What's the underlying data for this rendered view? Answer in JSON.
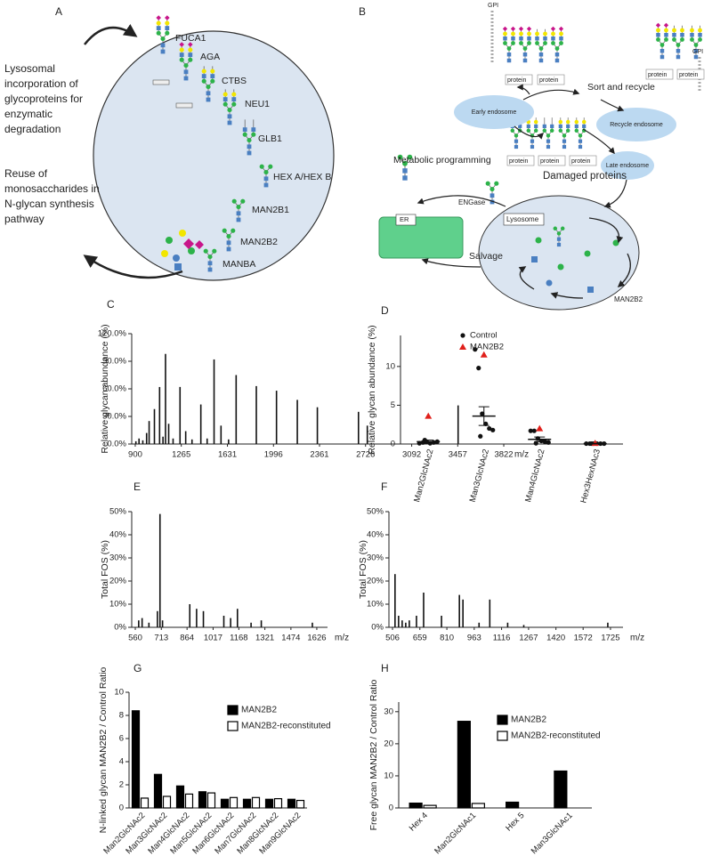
{
  "panel_a": {
    "label": "A",
    "caption": [
      "Lysosomal",
      "incorporation of",
      "glycoproteins for",
      "enzymatic",
      "degradation"
    ],
    "enzymes": [
      "FUCA1",
      "AGA",
      "CTBS",
      "NEU1",
      "GLB1",
      "HEX A/HEX B",
      "MAN2B1",
      "MAN2B2",
      "MANBA"
    ],
    "reuse": [
      "Reuse of",
      "monosaccharides in",
      "N-glycan synthesis",
      "pathway"
    ]
  },
  "panel_b": {
    "label": "B",
    "gpi": [
      "GPI",
      "GPI"
    ],
    "protein": [
      "protein",
      "protein",
      "protein",
      "protein",
      "protein",
      "protein",
      "protein"
    ],
    "sort": "Sort and recycle",
    "early": "Early endosome",
    "recycle": "Recycle endosome",
    "late": "Late endosome",
    "damaged": "Damaged proteins",
    "metabolic": "Metabolic programming",
    "engase": "ENGase",
    "er": "ER",
    "lysosome": "Lysosome",
    "salvage": "Salvage",
    "enzyme": "MAN2B2"
  },
  "chart_data": [
    {
      "type": "stem",
      "title": "C",
      "y_label": "Relative glycan abundance (%)",
      "x_label": "m/z",
      "color": "#111111",
      "x": [
        905,
        930,
        960,
        990,
        1010,
        1052,
        1093,
        1120,
        1140,
        1165,
        1200,
        1255,
        1300,
        1350,
        1420,
        1470,
        1525,
        1580,
        1640,
        1700,
        1860,
        2020,
        2185,
        2344,
        2670,
        2740,
        3460
      ],
      "values": [
        3,
        6,
        4,
        12,
        25,
        38,
        62,
        8,
        98,
        22,
        6,
        62,
        14,
        5,
        43,
        6,
        92,
        20,
        5,
        75,
        63,
        58,
        48,
        40,
        35,
        20,
        42
      ],
      "xlim": [
        872,
        3850
      ],
      "xticks": [
        900,
        1265,
        1631,
        1996,
        2361,
        2726,
        3092,
        3457,
        3822
      ],
      "ylim": [
        0,
        120
      ],
      "yticks": [
        {
          "value": 0,
          "label": "0.0%"
        },
        {
          "value": 30,
          "label": "30.0%"
        },
        {
          "value": 60,
          "label": "60.0%"
        },
        {
          "value": 90,
          "label": "90.0%"
        },
        {
          "value": 120,
          "label": "120.0%"
        }
      ]
    },
    {
      "type": "strip",
      "title": "D",
      "y_label": "Relative glycan abundance (%)",
      "categories": [
        "Man2GlcNAc2",
        "Man3GlcNAc2",
        "Man4GlcNAc2",
        "Hex3HexNAc3"
      ],
      "series": [
        {
          "name": "Control",
          "color": "#111111",
          "marker": "circle",
          "values": [
            [
              0.1,
              0.2,
              0.3,
              0.1,
              0.2,
              0.3,
              0.5
            ],
            [
              12.2,
              9.8,
              3.9,
              2.6,
              2.0,
              1.8,
              1.0
            ],
            [
              1.7,
              1.7,
              0.7,
              0.4,
              0.3,
              0.2,
              0.1
            ],
            [
              0.05,
              0.05,
              0.05,
              0.05,
              0.05,
              0.05,
              0.05
            ]
          ]
        },
        {
          "name": "MAN2B2",
          "color": "#e0201b",
          "marker": "triangle",
          "values": [
            [
              3.6
            ],
            [
              11.5
            ],
            [
              2.0
            ],
            [
              0.1
            ]
          ]
        }
      ],
      "mean": [
        0.3,
        3.6,
        0.6,
        0.05
      ],
      "error": [
        0.2,
        1.2,
        0.3,
        0.02
      ],
      "ylim": [
        0,
        14
      ],
      "yticks": [
        0,
        5,
        10
      ]
    },
    {
      "type": "stem",
      "title": "E",
      "y_label": "Total FOS (%)",
      "x_label": "m/z",
      "color": "#111111",
      "x": [
        580,
        600,
        640,
        690,
        705,
        720,
        880,
        920,
        960,
        1080,
        1120,
        1160,
        1240,
        1300,
        1600
      ],
      "values": [
        3,
        4,
        2,
        7,
        49,
        3,
        10,
        8,
        7,
        5,
        4,
        8,
        2,
        3,
        2
      ],
      "xlim": [
        539,
        1689
      ],
      "xticks": [
        560,
        713,
        864,
        1017,
        1168,
        1321,
        1474,
        1626
      ],
      "ylim": [
        0,
        50
      ],
      "yticks": [
        {
          "value": 0,
          "label": "0%"
        },
        {
          "value": 10,
          "label": "10%"
        },
        {
          "value": 20,
          "label": "20%"
        },
        {
          "value": 30,
          "label": "30%"
        },
        {
          "value": 40,
          "label": "40%"
        },
        {
          "value": 50,
          "label": "50%"
        }
      ]
    },
    {
      "type": "stem",
      "title": "F",
      "y_label": "Total FOS (%)",
      "x_label": "m/z",
      "color": "#111111",
      "x": [
        520,
        540,
        560,
        580,
        600,
        640,
        680,
        780,
        880,
        900,
        990,
        1050,
        1150,
        1240,
        1710
      ],
      "values": [
        23,
        5,
        3,
        2,
        3,
        5,
        15,
        5,
        14,
        12,
        2,
        12,
        2,
        1,
        2
      ],
      "xlim": [
        486,
        1795
      ],
      "xticks": [
        506,
        659,
        810,
        963,
        1116,
        1267,
        1420,
        1572,
        1725
      ],
      "ylim": [
        0,
        50
      ],
      "yticks": [
        {
          "value": 0,
          "label": "0%"
        },
        {
          "value": 10,
          "label": "10%"
        },
        {
          "value": 20,
          "label": "20%"
        },
        {
          "value": 30,
          "label": "30%"
        },
        {
          "value": 40,
          "label": "40%"
        },
        {
          "value": 50,
          "label": "50%"
        }
      ]
    },
    {
      "type": "bar",
      "title": "G",
      "y_label": "N-linked glycan MAN2B2 / Control Ratio",
      "categories": [
        "Man2GlcNAc2",
        "Man3GlcNAc2",
        "Man4GlcNAc2",
        "Man5GlcNAc2",
        "Man6GlcNAc2",
        "Man7GlcNAc2",
        "Man8GlcNAc2",
        "Man9GlcNAc2"
      ],
      "series": [
        {
          "name": "MAN2B2",
          "color": "#000000",
          "values": [
            8.4,
            2.9,
            1.9,
            1.4,
            0.75,
            0.75,
            0.75,
            0.75
          ]
        },
        {
          "name": "MAN2B2-reconstituted",
          "color": "#ffffff",
          "values": [
            0.85,
            1.0,
            1.2,
            1.3,
            0.9,
            0.9,
            0.8,
            0.65
          ]
        }
      ],
      "ylim": [
        0,
        10
      ],
      "yticks": [
        0,
        2,
        4,
        6,
        8,
        10
      ]
    },
    {
      "type": "bar",
      "title": "H",
      "y_label": "Free glycan MAN2B2 / Control Ratio",
      "categories": [
        "Hex 4",
        "Man2GlcNAc1",
        "Hex 5",
        "Man3GlcNAc1"
      ],
      "series": [
        {
          "name": "MAN2B2",
          "color": "#000000",
          "values": [
            1.5,
            27,
            1.8,
            11.5
          ]
        },
        {
          "name": "MAN2B2-reconstituted",
          "color": "#ffffff",
          "values": [
            0.8,
            1.4,
            null,
            null
          ]
        }
      ],
      "ylim": [
        0,
        33
      ],
      "yticks": [
        0,
        10,
        20,
        30
      ]
    }
  ]
}
